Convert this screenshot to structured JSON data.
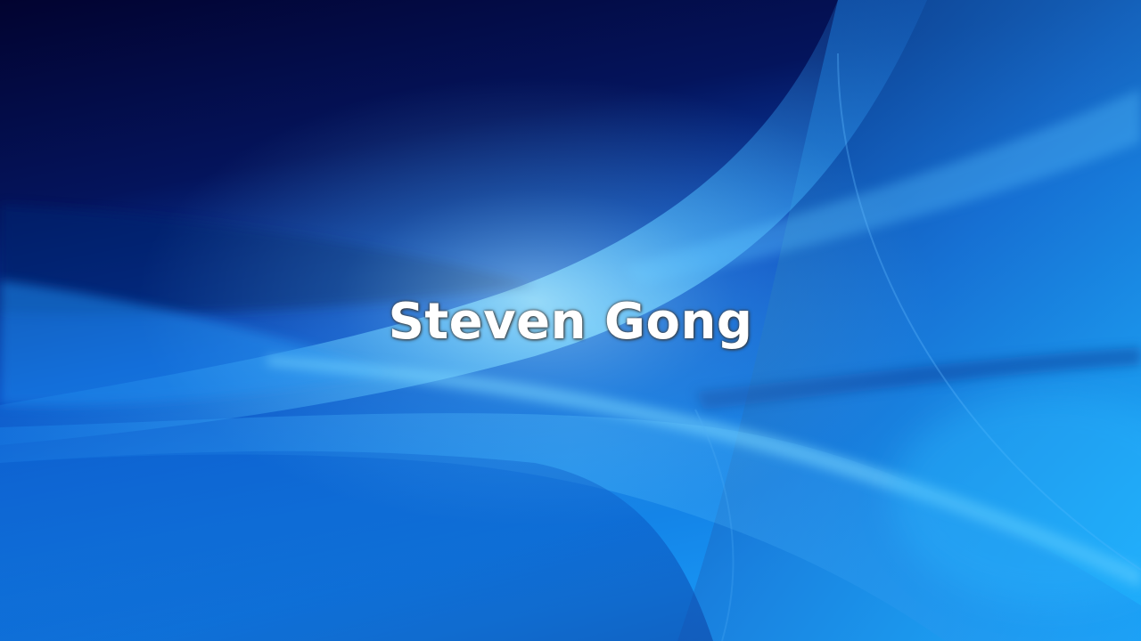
{
  "slide": {
    "title": "Steven Gong"
  },
  "colors": {
    "background_dark": "#03062e",
    "background_mid": "#0a4fc4",
    "background_light": "#1aa3f0",
    "highlight": "#8fe6ff",
    "title_text": "#ffffff"
  }
}
